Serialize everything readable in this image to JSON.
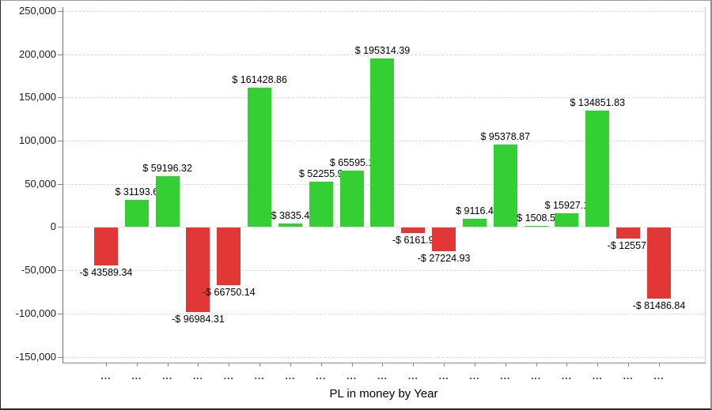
{
  "chart_data": {
    "type": "bar",
    "title": "",
    "xlabel": "PL in money by Year",
    "ylabel": "",
    "ylim": [
      -150000,
      250000
    ],
    "ytick_interval": 50000,
    "ytick_labels": [
      "250,000",
      "200,000",
      "150,000",
      "100,000",
      "50,000",
      "0",
      "-50,000",
      "-100,000",
      "-150,000"
    ],
    "grid": "horizontal dashed",
    "legend": "none",
    "categories": [
      "...",
      "...",
      "...",
      "...",
      "...",
      "...",
      "...",
      "...",
      "...",
      "...",
      "...",
      "...",
      "...",
      "...",
      "...",
      "...",
      "...",
      "...",
      "..."
    ],
    "values": [
      -43589.34,
      31193.6,
      59196.32,
      -96984.31,
      -66750.14,
      161428.86,
      3835.4,
      52255.9,
      65595.1,
      195314.39,
      -6161.9,
      -27224.93,
      9116.4,
      95378.87,
      1508.5,
      15927.1,
      134851.83,
      -12557,
      -81486.84
    ],
    "bar_labels": [
      "-$ 43589.34",
      "$ 31193.6",
      "$ 59196.32",
      "-$ 96984.31",
      "-$ 66750.14",
      "$ 161428.86",
      "$ 3835.4",
      "$ 52255.9",
      "$ 65595.1",
      "$ 195314.39",
      "-$ 6161.9",
      "-$ 27224.93",
      "$ 9116.4",
      "$ 95378.87",
      "$ 1508.5",
      "$ 15927.1",
      "$ 134851.83",
      "-$ 12557.",
      "-$ 81486.84"
    ],
    "colors": {
      "positive": "#33cf33",
      "negative": "#e23737",
      "grid": "#d9d9d9",
      "axis": "#8a8a8a",
      "label_text": "#000000"
    }
  }
}
